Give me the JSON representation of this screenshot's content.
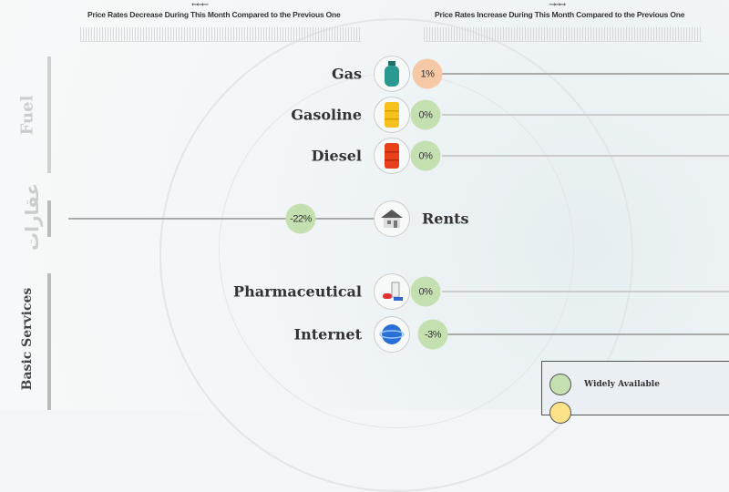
{
  "header": {
    "decrease": "Price Rates Decrease During This Month Compared to the Previous One",
    "increase": "Price Rates Increase During This Month Compared to the Previous One",
    "left_arrows": "←←←",
    "right_arrows": "→→→"
  },
  "groups": {
    "fuel": "Fuel",
    "real_estate": "عقارات",
    "basic_services": "Basic Services"
  },
  "items": [
    {
      "label": "Gas",
      "value": "1%",
      "icon": "gas-cylinder-icon",
      "status_color": "#f6c8a6"
    },
    {
      "label": "Gasoline",
      "value": "0%",
      "icon": "yellow-barrel-icon",
      "status_color": "#c5e0b0"
    },
    {
      "label": "Diesel",
      "value": "0%",
      "icon": "red-barrel-icon",
      "status_color": "#c5e0b0"
    },
    {
      "label": "Rents",
      "value": "-22%",
      "icon": "house-icon",
      "status_color": "#c5e0b0"
    },
    {
      "label": "Pharmaceutical",
      "value": "0%",
      "icon": "medicine-icon",
      "status_color": "#c5e0b0"
    },
    {
      "label": "Internet",
      "value": "-3%",
      "icon": "globe-icon",
      "status_color": "#c5e0b0"
    }
  ],
  "legend": [
    {
      "label": "Widely Available",
      "color": "#c5e0b0"
    },
    {
      "label": "",
      "color": "#fde28a"
    }
  ]
}
